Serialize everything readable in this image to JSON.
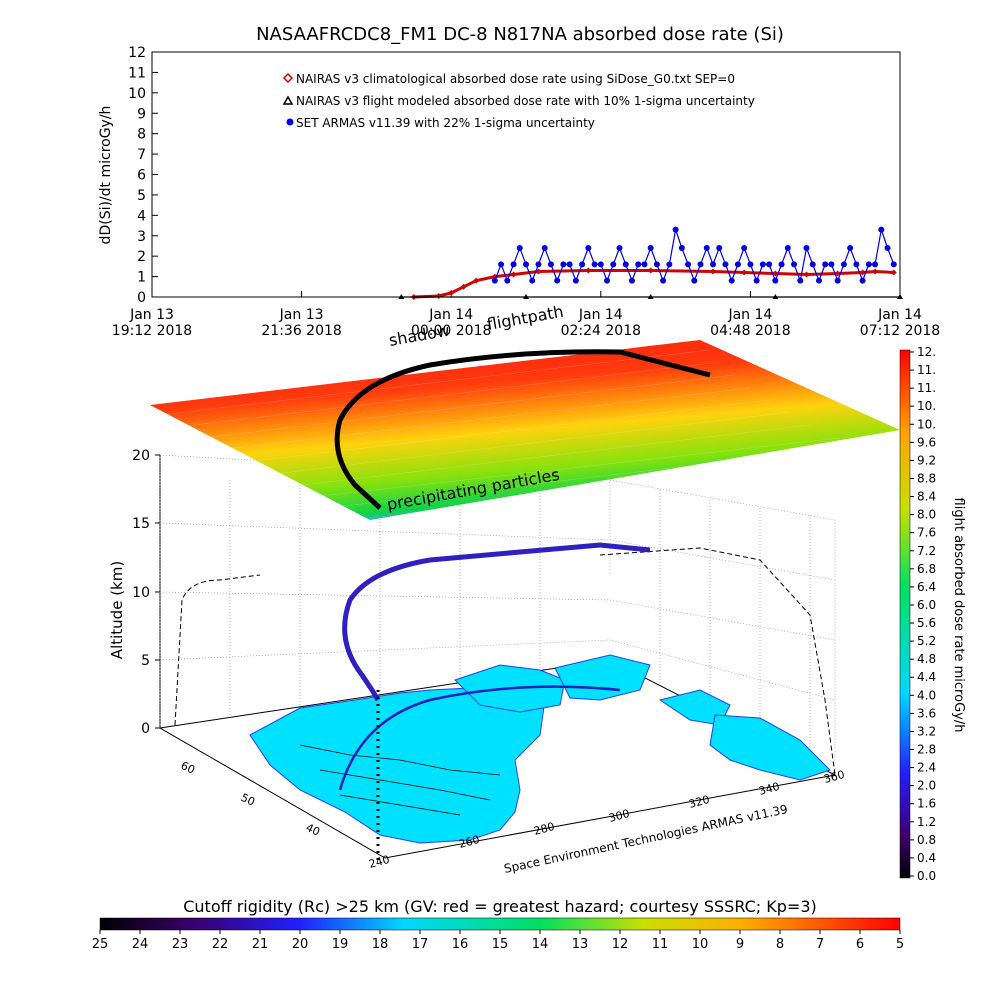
{
  "title": "NASAAFRCDC8_FM1 DC-8   N817NA absorbed dose rate (Si)",
  "colors": {
    "nairas_clim": "#d00000",
    "nairas_flight": "#000000",
    "armas": "#0000e0",
    "background": "#ffffff"
  },
  "chart_data": [
    {
      "type": "line",
      "ylabel": "dD(Si)/dt microGy/h",
      "ylim": [
        0,
        12
      ],
      "y_ticks": [
        "0",
        "1",
        "2",
        "3",
        "4",
        "5",
        "6",
        "7",
        "8",
        "9",
        "10",
        "11",
        "12"
      ],
      "x_ticks": [
        {
          "day": "Jan 13",
          "time": "19:12 2018"
        },
        {
          "day": "Jan 13",
          "time": "21:36 2018"
        },
        {
          "day": "Jan 14",
          "time": "00:00 2018"
        },
        {
          "day": "Jan 14",
          "time": "02:24 2018"
        },
        {
          "day": "Jan 14",
          "time": "04:48 2018"
        },
        {
          "day": "Jan 14",
          "time": "07:12 2018"
        }
      ],
      "xlim_hours": [
        0,
        12
      ],
      "legend_placement": "top",
      "series": [
        {
          "name": "NAIRAS v3 climatological absorbed dose rate using SiDose_G0.txt SEP=0",
          "marker": "diamond",
          "x": [
            4.2,
            4.6,
            4.8,
            5.0,
            5.2,
            5.5,
            5.8,
            6.2,
            7.0,
            8.0,
            9.0,
            9.5,
            10.0,
            10.5,
            11.0,
            11.4,
            11.6,
            11.9
          ],
          "values": [
            0,
            0.05,
            0.2,
            0.5,
            0.8,
            1.0,
            1.1,
            1.25,
            1.3,
            1.3,
            1.25,
            1.2,
            1.15,
            1.1,
            1.15,
            1.2,
            1.25,
            1.2
          ]
        },
        {
          "name": "NAIRAS v3 flight modeled absorbed dose rate with 10% 1-sigma uncertainty",
          "marker": "triangle",
          "x": [
            4.0,
            6.0,
            8.0,
            10.0,
            12.0
          ],
          "values": [
            0,
            0,
            0,
            0,
            0
          ]
        },
        {
          "name": "SET ARMAS v11.39 with 22% 1-sigma uncertainty",
          "marker": "circle",
          "x": [
            5.5,
            5.6,
            5.7,
            5.8,
            5.9,
            6.0,
            6.1,
            6.2,
            6.3,
            6.4,
            6.5,
            6.6,
            6.7,
            6.8,
            6.9,
            7.0,
            7.1,
            7.2,
            7.3,
            7.4,
            7.5,
            7.6,
            7.7,
            7.8,
            7.9,
            8.0,
            8.1,
            8.2,
            8.3,
            8.4,
            8.5,
            8.6,
            8.7,
            8.8,
            8.9,
            9.0,
            9.1,
            9.2,
            9.3,
            9.4,
            9.5,
            9.6,
            9.7,
            9.8,
            9.9,
            10.0,
            10.1,
            10.2,
            10.3,
            10.4,
            10.5,
            10.6,
            10.7,
            10.8,
            10.9,
            11.0,
            11.1,
            11.2,
            11.3,
            11.4,
            11.5,
            11.6,
            11.7,
            11.8,
            11.9
          ],
          "values": [
            0.8,
            1.6,
            0.8,
            1.6,
            2.4,
            1.6,
            0.8,
            1.6,
            2.4,
            1.6,
            0.8,
            1.6,
            1.6,
            0.8,
            1.6,
            2.4,
            1.6,
            1.6,
            0.8,
            1.6,
            2.4,
            1.6,
            0.8,
            1.6,
            1.6,
            2.4,
            1.6,
            0.8,
            1.6,
            3.3,
            2.4,
            1.6,
            0.8,
            1.6,
            2.4,
            1.6,
            2.4,
            1.6,
            0.8,
            1.6,
            2.4,
            1.6,
            0.8,
            1.6,
            1.6,
            0.8,
            1.6,
            2.4,
            1.6,
            0.8,
            2.4,
            1.6,
            0.8,
            1.6,
            1.6,
            0.8,
            1.6,
            2.4,
            1.6,
            0.8,
            1.6,
            1.6,
            3.3,
            2.4,
            1.6
          ]
        }
      ]
    },
    {
      "type": "surface3d",
      "annotations": [
        "shadow",
        "flightpath",
        "precipitating particles",
        "Space Environment Technologies ARMAS v11.39"
      ],
      "zlabel": "Altitude (km)",
      "z_ticks": [
        "0",
        "5",
        "10",
        "15",
        "20"
      ],
      "lat_ticks": [
        "60",
        "50",
        "40"
      ],
      "lon_ticks": [
        "240",
        "260",
        "280",
        "300",
        "320",
        "340",
        "360"
      ]
    },
    {
      "type": "colorbar",
      "orientation": "vertical",
      "label": "flight absorbed dose rate microGy/h",
      "ticks": [
        "12.",
        "11.",
        "11.",
        "10.",
        "10.",
        "9.6",
        "9.2",
        "8.8",
        "8.4",
        "8.0",
        "7.6",
        "7.2",
        "6.8",
        "6.4",
        "6.0",
        "5.6",
        "5.2",
        "4.8",
        "4.4",
        "4.0",
        "3.6",
        "3.2",
        "2.8",
        "2.4",
        "2.0",
        "1.6",
        "1.2",
        "0.8",
        "0.4",
        "0.0"
      ]
    },
    {
      "type": "colorbar",
      "orientation": "horizontal",
      "label": "Cutoff rigidity (Rc) >25 km (GV: red = greatest hazard; courtesy SSSRC; Kp=3)",
      "ticks": [
        "25",
        "24",
        "23",
        "22",
        "21",
        "20",
        "19",
        "18",
        "17",
        "16",
        "15",
        "14",
        "13",
        "12",
        "11",
        "10",
        "9",
        "8",
        "7",
        "6",
        "5"
      ]
    }
  ]
}
